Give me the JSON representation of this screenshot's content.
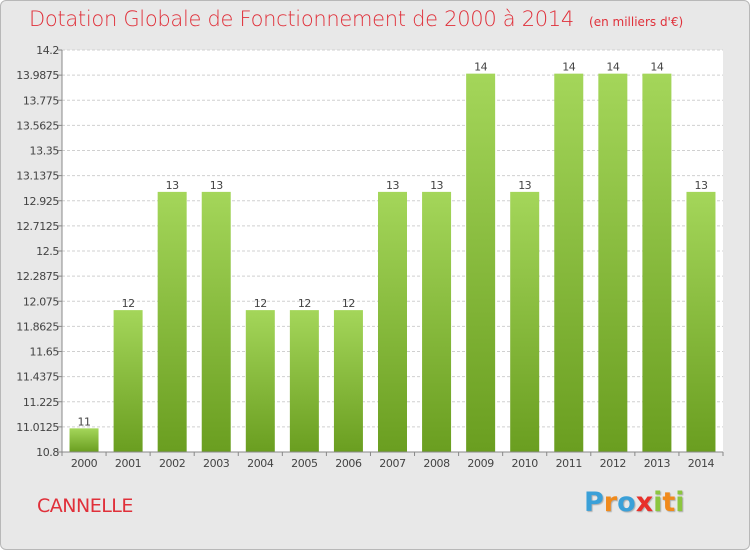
{
  "header": {
    "title": "Dotation Globale de Fonctionnement de 2000 à 2014",
    "unit": "(en milliers d'€)"
  },
  "footer": {
    "commune": "CANNELLE",
    "brand_letters": [
      "P",
      "r",
      "o",
      "x",
      "i",
      "t",
      "i"
    ],
    "brand_colors": [
      "#3aa0d8",
      "#f08a1c",
      "#3aa0d8",
      "#e8302a",
      "#8cc63f",
      "#f08a1c",
      "#8cc63f"
    ]
  },
  "colors": {
    "title": "#e0303a",
    "bar_light": "#a4d65a",
    "bar_dark": "#6a9e20",
    "background": "#e8e8e8",
    "plot_background": "#ffffff",
    "grid": "#d0d0d0"
  },
  "chart_data": {
    "type": "bar",
    "title": "Dotation Globale de Fonctionnement de 2000 à 2014",
    "unit": "(en milliers d'€)",
    "categories": [
      "2000",
      "2001",
      "2002",
      "2003",
      "2004",
      "2005",
      "2006",
      "2007",
      "2008",
      "2009",
      "2010",
      "2011",
      "2012",
      "2013",
      "2014"
    ],
    "values": [
      11,
      12,
      13,
      13,
      12,
      12,
      12,
      13,
      13,
      14,
      13,
      14,
      14,
      14,
      13
    ],
    "labels": [
      "11",
      "12",
      "13",
      "13",
      "12",
      "12",
      "12",
      "13",
      "13",
      "14",
      "13",
      "14",
      "14",
      "14",
      "13"
    ],
    "ylim": [
      10.8,
      14.2
    ],
    "yticks": [
      "14.2",
      "13.9875",
      "13.775",
      "13.5625",
      "13.35",
      "13.1375",
      "12.925",
      "12.7125",
      "12.5",
      "12.2875",
      "12.075",
      "11.8625",
      "11.65",
      "11.4375",
      "11.225",
      "11.0125",
      "10.8"
    ],
    "ytick_values": [
      14.2,
      13.9875,
      13.775,
      13.5625,
      13.35,
      13.1375,
      12.925,
      12.7125,
      12.5,
      12.2875,
      12.075,
      11.8625,
      11.65,
      11.4375,
      11.225,
      11.0125,
      10.8
    ],
    "grid": true
  }
}
